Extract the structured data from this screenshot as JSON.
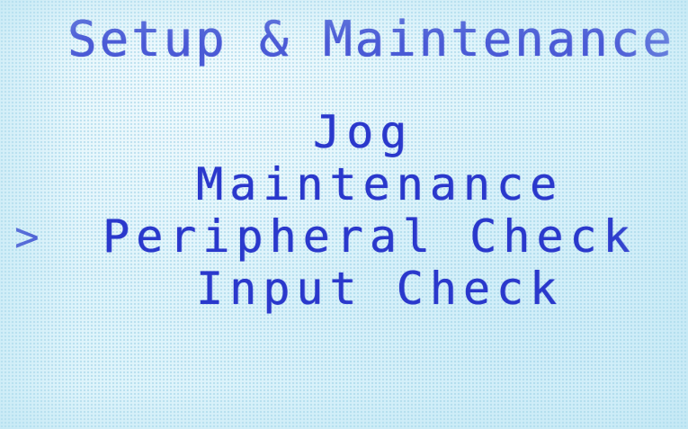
{
  "screen": {
    "title": "Setup & Maintenance",
    "cursor_glyph": ">",
    "selected_index": 2,
    "text_color": "#2f3fd0",
    "background_color": "#dff4fb"
  },
  "menu": {
    "items": [
      {
        "label": "Jog"
      },
      {
        "label": "Maintenance"
      },
      {
        "label": "Peripheral Check"
      },
      {
        "label": "Input Check"
      }
    ]
  }
}
